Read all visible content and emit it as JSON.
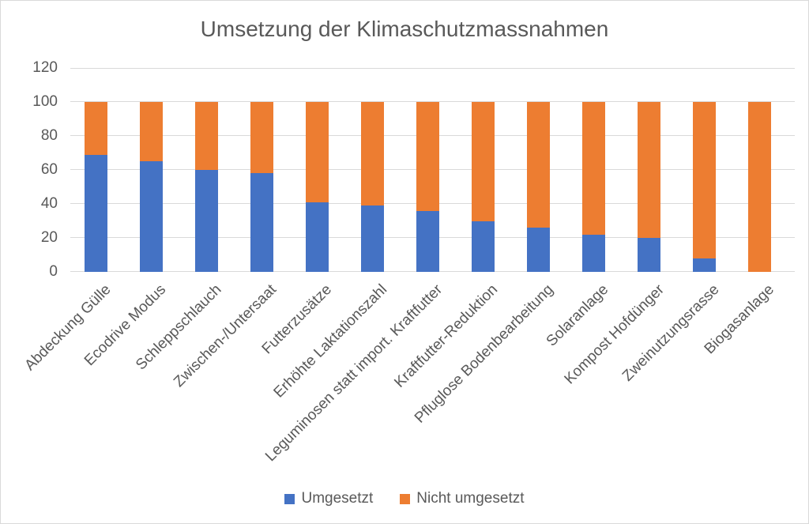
{
  "chart_data": {
    "type": "bar",
    "subtype": "stacked",
    "title": "Umsetzung der Klimaschutzmassnahmen",
    "categories": [
      "Abdeckung Gülle",
      "Ecodrive Modus",
      "Schleppschlauch",
      "Zwischen-/Untersaat",
      "Futterzusätze",
      "Erhöhte Laktationszahl",
      "Leguminosen statt import. Kraftfutter",
      "Kraftfutter-Reduktion",
      "Pfluglose Bodenbearbeitung",
      "Solaranlage",
      "Kompost Hofdünger",
      "Zweinutzungsrasse",
      "Biogasanlage"
    ],
    "series": [
      {
        "name": "Umgesetzt",
        "color": "#4472C4",
        "values": [
          69,
          65,
          60,
          58,
          41,
          39,
          36,
          30,
          26,
          22,
          20,
          8,
          0
        ]
      },
      {
        "name": "Nicht umgesetzt",
        "color": "#ED7D31",
        "values": [
          31,
          35,
          40,
          42,
          59,
          61,
          64,
          70,
          74,
          78,
          80,
          92,
          100
        ]
      }
    ],
    "stack_total": 100,
    "xlabel": "",
    "ylabel": "",
    "ylim": [
      0,
      120
    ],
    "ytick_step": 20,
    "yticks": [
      0,
      20,
      40,
      60,
      80,
      100,
      120
    ],
    "grid": true,
    "legend_position": "bottom",
    "x_label_rotation_deg": 45
  },
  "colors": {
    "text": "#595959",
    "grid": "#d9d9d9",
    "border": "#d9d9d9",
    "background": "#ffffff"
  }
}
